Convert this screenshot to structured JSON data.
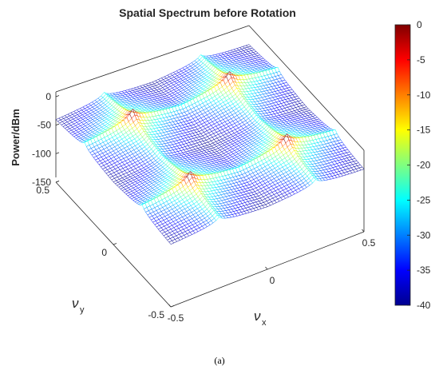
{
  "chart_data": {
    "type": "surface",
    "title": "Spatial Spectrum before Rotation",
    "xlabel": "ν_x",
    "xlabel_main": "ν",
    "xlabel_sub": "x",
    "ylabel": "ν_y",
    "ylabel_main": "ν",
    "ylabel_sub": "y",
    "zlabel": "Power/dBm",
    "xlim": [
      -0.5,
      0.5
    ],
    "ylim": [
      -0.5,
      0.5
    ],
    "zlim": [
      -150,
      0
    ],
    "x_ticks": [
      "-0.5",
      "0",
      "0.5"
    ],
    "y_ticks": [
      "-0.5",
      "0",
      "0.5"
    ],
    "z_ticks": [
      "0",
      "-50",
      "-100",
      "-150"
    ],
    "colormap": "jet",
    "mesh_color": "#1a2a9e",
    "colorbar": {
      "min": -40,
      "max": 0,
      "ticks": [
        "0",
        "-5",
        "-10",
        "-15",
        "-20",
        "-25",
        "-30",
        "-35",
        "-40"
      ]
    },
    "peaks": [
      {
        "nu_x": -0.25,
        "nu_y": -0.25,
        "power_dBm": 0
      },
      {
        "nu_x": -0.25,
        "nu_y": 0.25,
        "power_dBm": 0
      },
      {
        "nu_x": 0.25,
        "nu_y": -0.25,
        "power_dBm": 0
      },
      {
        "nu_x": 0.25,
        "nu_y": 0.25,
        "power_dBm": 0
      }
    ],
    "floor_dBm": -140,
    "grid": false
  },
  "caption": "(a)"
}
